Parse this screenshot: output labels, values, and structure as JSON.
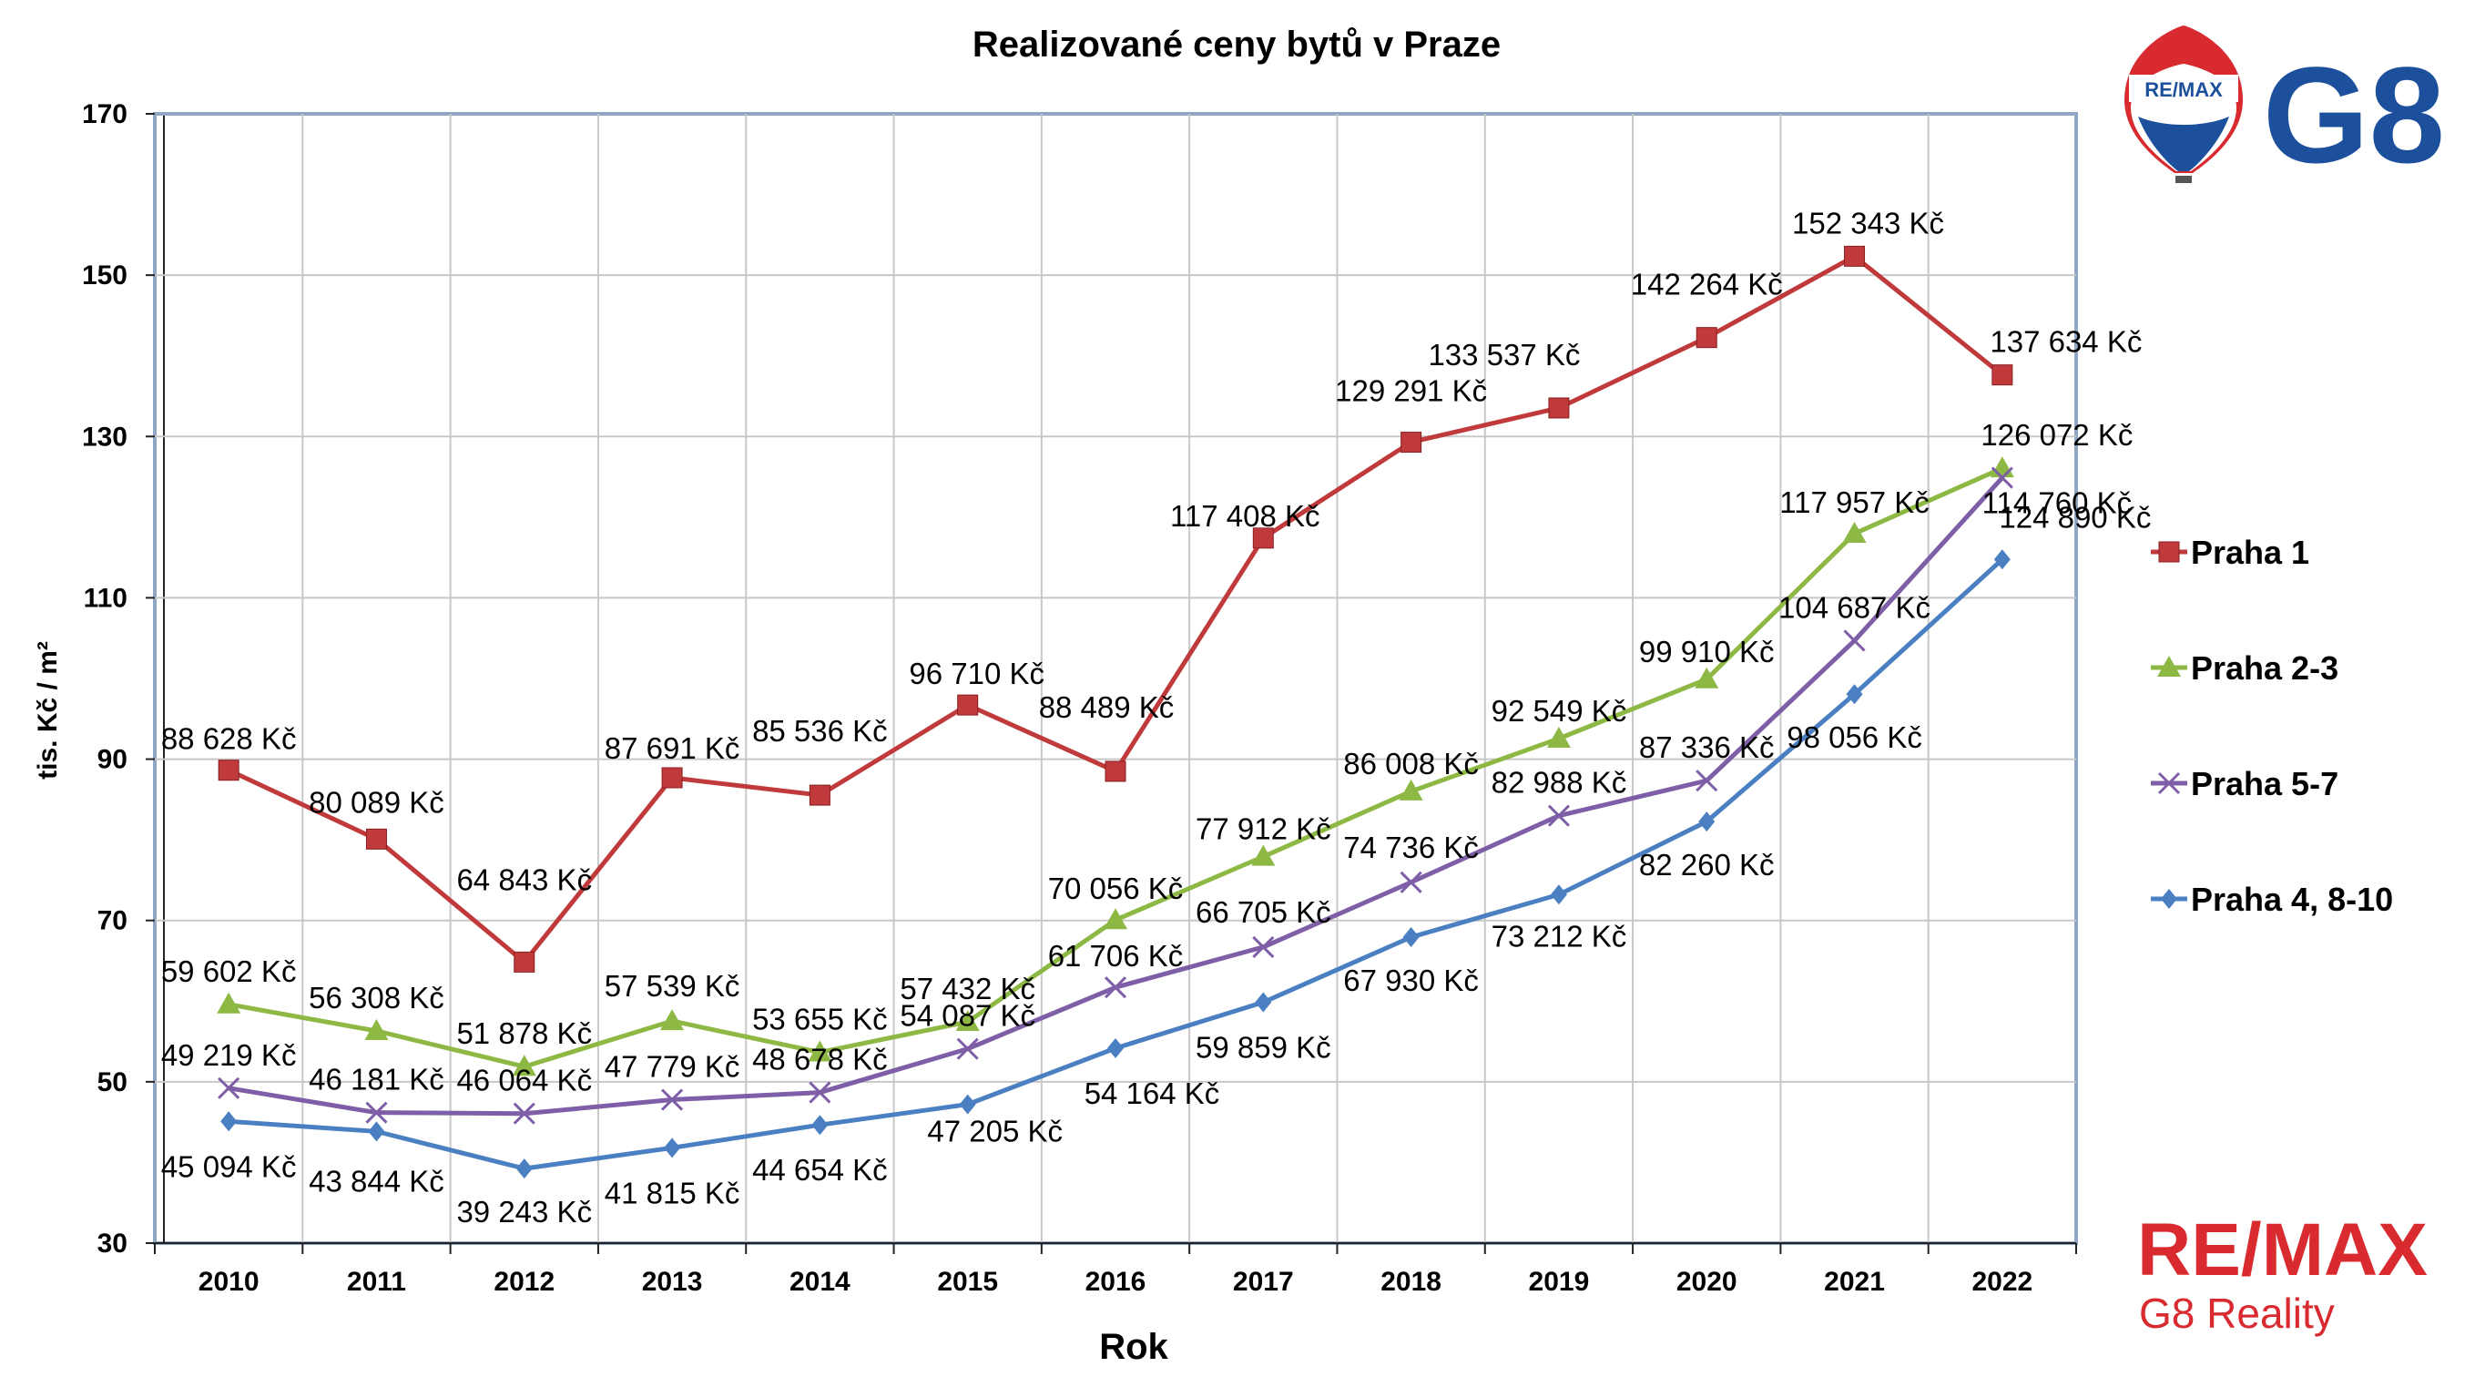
{
  "chart_data": {
    "type": "line",
    "title": "Realizované ceny bytů v Praze",
    "xlabel": "Rok",
    "ylabel": "tis. Kč / m²",
    "ylim": [
      30,
      170
    ],
    "yticks": [
      30,
      50,
      70,
      90,
      110,
      130,
      150,
      170
    ],
    "categories": [
      "2010",
      "2011",
      "2012",
      "2013",
      "2014",
      "2015",
      "2016",
      "2017",
      "2018",
      "2019",
      "2020",
      "2021",
      "2022"
    ],
    "grid": true,
    "legend_position": "right",
    "series": [
      {
        "name": "Praha 1",
        "color": "#c0393b",
        "marker": "square",
        "values": [
          88.628,
          80.089,
          64.843,
          87.691,
          85.536,
          96.71,
          88.489,
          117.408,
          129.291,
          133.537,
          142.264,
          152.343,
          137.634
        ],
        "labels": [
          "88 628 Kč",
          "80 089 Kč",
          "64 843 Kč",
          "87 691 Kč",
          "85 536 Kč",
          "96 710 Kč",
          "88 489 Kč",
          "117 408 Kč",
          "129 291 Kč",
          "133 537 Kč",
          "142 264 Kč",
          "152 343 Kč",
          "137 634 Kč"
        ]
      },
      {
        "name": "Praha 2-3",
        "color": "#8db843",
        "marker": "triangle",
        "values": [
          59.602,
          56.308,
          51.878,
          57.539,
          53.655,
          57.432,
          70.056,
          77.912,
          86.008,
          92.549,
          99.91,
          117.957,
          126.072
        ],
        "labels": [
          "59 602 Kč",
          "56 308 Kč",
          "51 878 Kč",
          "57 539 Kč",
          "53 655 Kč",
          "57 432 Kč",
          "70 056 Kč",
          "77 912 Kč",
          "86 008 Kč",
          "92 549 Kč",
          "99 910 Kč",
          "117 957 Kč",
          "126 072 Kč"
        ]
      },
      {
        "name": "Praha 5-7",
        "color": "#7e5ea6",
        "marker": "x",
        "values": [
          49.219,
          46.181,
          46.064,
          47.779,
          48.678,
          54.087,
          61.706,
          66.705,
          74.736,
          82.988,
          87.336,
          104.687,
          124.89
        ],
        "labels": [
          "49 219 Kč",
          "46 181 Kč",
          "46 064 Kč",
          "47 779 Kč",
          "48 678 Kč",
          "54 087 Kč",
          "61 706 Kč",
          "66 705 Kč",
          "74 736 Kč",
          "82 988 Kč",
          "87 336 Kč",
          "104 687 Kč",
          "124 890 Kč"
        ]
      },
      {
        "name": "Praha 4, 8-10",
        "color": "#4a7fc1",
        "marker": "diamond",
        "values": [
          45.094,
          43.844,
          39.243,
          41.815,
          44.654,
          47.205,
          54.164,
          59.859,
          67.93,
          73.212,
          82.26,
          98.056,
          114.76
        ],
        "labels": [
          "45 094 Kč",
          "43 844 Kč",
          "39 243 Kč",
          "41 815 Kč",
          "44 654 Kč",
          "47 205 Kč",
          "54 164 Kč",
          "59 859 Kč",
          "67 930 Kč",
          "73 212 Kč",
          "82 260 Kč",
          "98 056 Kč",
          "114 760 Kč"
        ]
      }
    ]
  },
  "logos": {
    "top_brand_text": "RE/MAX",
    "top_mark_text": "G8",
    "bottom_brand_text": "RE/MAX",
    "bottom_company_text": "G8 Reality"
  }
}
